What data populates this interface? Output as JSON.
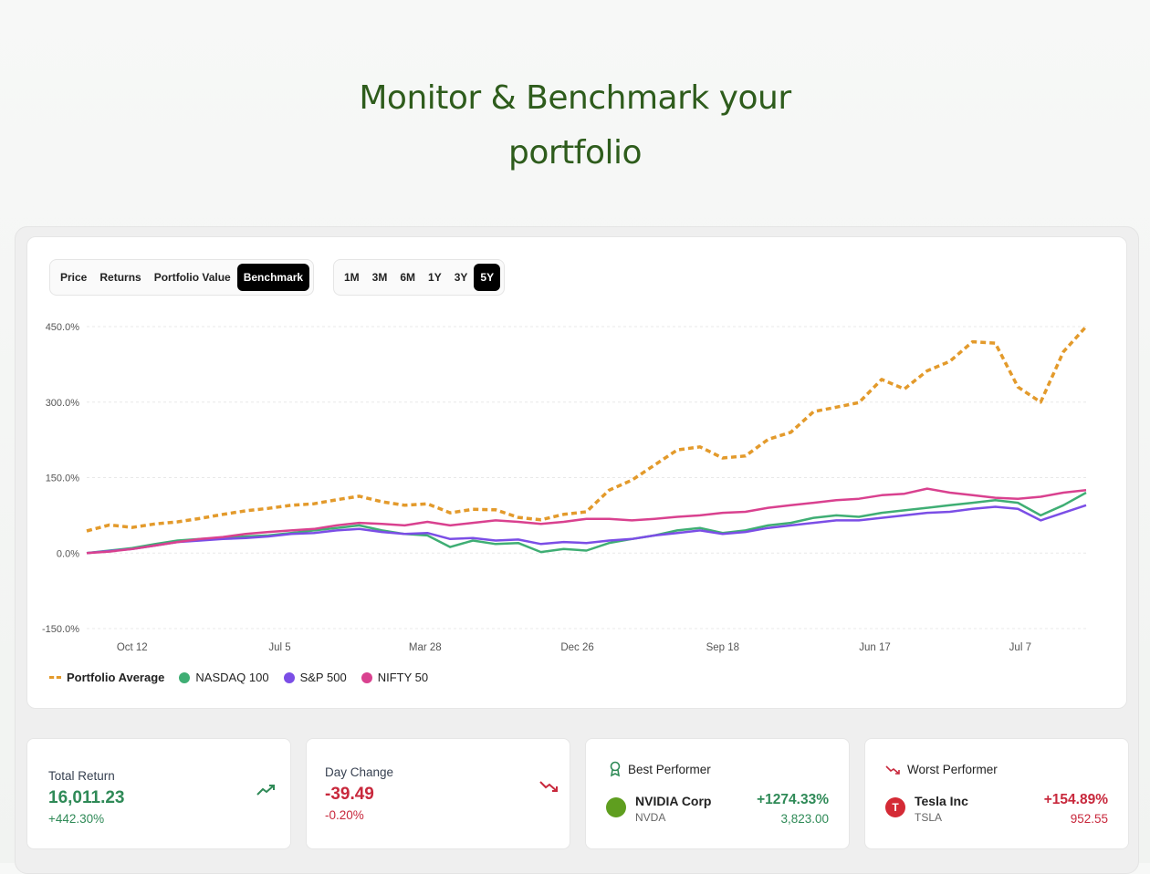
{
  "hero": {
    "line1": "Monitor & Benchmark your",
    "line2": "portfolio"
  },
  "view_tabs": [
    {
      "label": "Price",
      "active": false
    },
    {
      "label": "Returns",
      "active": false
    },
    {
      "label": "Portfolio Value",
      "active": false
    },
    {
      "label": "Benchmark",
      "active": true
    }
  ],
  "range_tabs": [
    {
      "label": "1M",
      "active": false
    },
    {
      "label": "3M",
      "active": false
    },
    {
      "label": "6M",
      "active": false
    },
    {
      "label": "1Y",
      "active": false
    },
    {
      "label": "3Y",
      "active": false
    },
    {
      "label": "5Y",
      "active": true
    }
  ],
  "chart_data": {
    "type": "line",
    "ylim": [
      -150,
      450
    ],
    "yticks": [
      "450.0%",
      "300.0%",
      "150.0%",
      "0.0%",
      "-150.0%"
    ],
    "ytick_values": [
      450,
      300,
      150,
      0,
      -150
    ],
    "grid": true,
    "legend_position": "bottom-left",
    "x_ticks": [
      {
        "label": "Oct 12",
        "at": 2
      },
      {
        "label": "Jul 5",
        "at": 8.5
      },
      {
        "label": "Mar 28",
        "at": 14.9
      },
      {
        "label": "Dec 26",
        "at": 21.6
      },
      {
        "label": "Sep 18",
        "at": 28
      },
      {
        "label": "Jun 17",
        "at": 34.7
      },
      {
        "label": "Jul 7",
        "at": 41.1
      }
    ],
    "series": [
      {
        "name": "Portfolio Average",
        "color": "#e39a2b",
        "dashed": true,
        "values": [
          44,
          56,
          51,
          58,
          62,
          69,
          77,
          84,
          89,
          95,
          98,
          106,
          113,
          102,
          95,
          98,
          80,
          87,
          86,
          71,
          66,
          77,
          82,
          125,
          145,
          175,
          205,
          211,
          189,
          193,
          226,
          240,
          281,
          290,
          299,
          345,
          326,
          362,
          381,
          420,
          417,
          330,
          300,
          400,
          450
        ]
      },
      {
        "name": "NASDAQ 100",
        "color": "#3fae74",
        "dashed": false,
        "values": [
          0,
          5,
          10,
          18,
          25,
          28,
          30,
          33,
          35,
          40,
          45,
          50,
          55,
          45,
          38,
          35,
          12,
          25,
          18,
          20,
          2,
          8,
          5,
          20,
          28,
          35,
          45,
          50,
          40,
          45,
          55,
          60,
          70,
          75,
          72,
          80,
          85,
          90,
          95,
          100,
          105,
          100,
          75,
          95,
          120
        ]
      },
      {
        "name": "S&P 500",
        "color": "#7b4ee6",
        "dashed": false,
        "values": [
          0,
          4,
          8,
          15,
          22,
          25,
          28,
          30,
          33,
          38,
          40,
          45,
          48,
          42,
          38,
          40,
          28,
          30,
          25,
          27,
          18,
          22,
          20,
          25,
          28,
          35,
          40,
          45,
          38,
          42,
          50,
          55,
          60,
          65,
          65,
          70,
          75,
          80,
          82,
          88,
          92,
          88,
          65,
          80,
          95
        ]
      },
      {
        "name": "NIFTY 50",
        "color": "#d9418f",
        "dashed": false,
        "values": [
          0,
          3,
          8,
          15,
          22,
          28,
          32,
          38,
          42,
          45,
          48,
          55,
          60,
          58,
          55,
          62,
          55,
          60,
          65,
          62,
          58,
          62,
          68,
          68,
          65,
          68,
          72,
          75,
          80,
          82,
          90,
          95,
          100,
          105,
          108,
          115,
          118,
          128,
          120,
          115,
          110,
          108,
          112,
          120,
          125
        ]
      }
    ]
  },
  "stats": {
    "total_return": {
      "label": "Total Return",
      "value": "16,011.23",
      "pct": "+442.30%"
    },
    "day_change": {
      "label": "Day Change",
      "value": "-39.49",
      "pct": "-0.20%"
    },
    "best": {
      "label": "Best Performer",
      "name": "NVIDIA Corp",
      "ticker": "NVDA",
      "pct": "+1274.33%",
      "price": "3,823.00",
      "logo_text": "nvidia"
    },
    "worst": {
      "label": "Worst Performer",
      "name": "Tesla Inc",
      "ticker": "TSLA",
      "pct": "+154.89%",
      "price": "952.55",
      "logo_text": "T"
    }
  }
}
